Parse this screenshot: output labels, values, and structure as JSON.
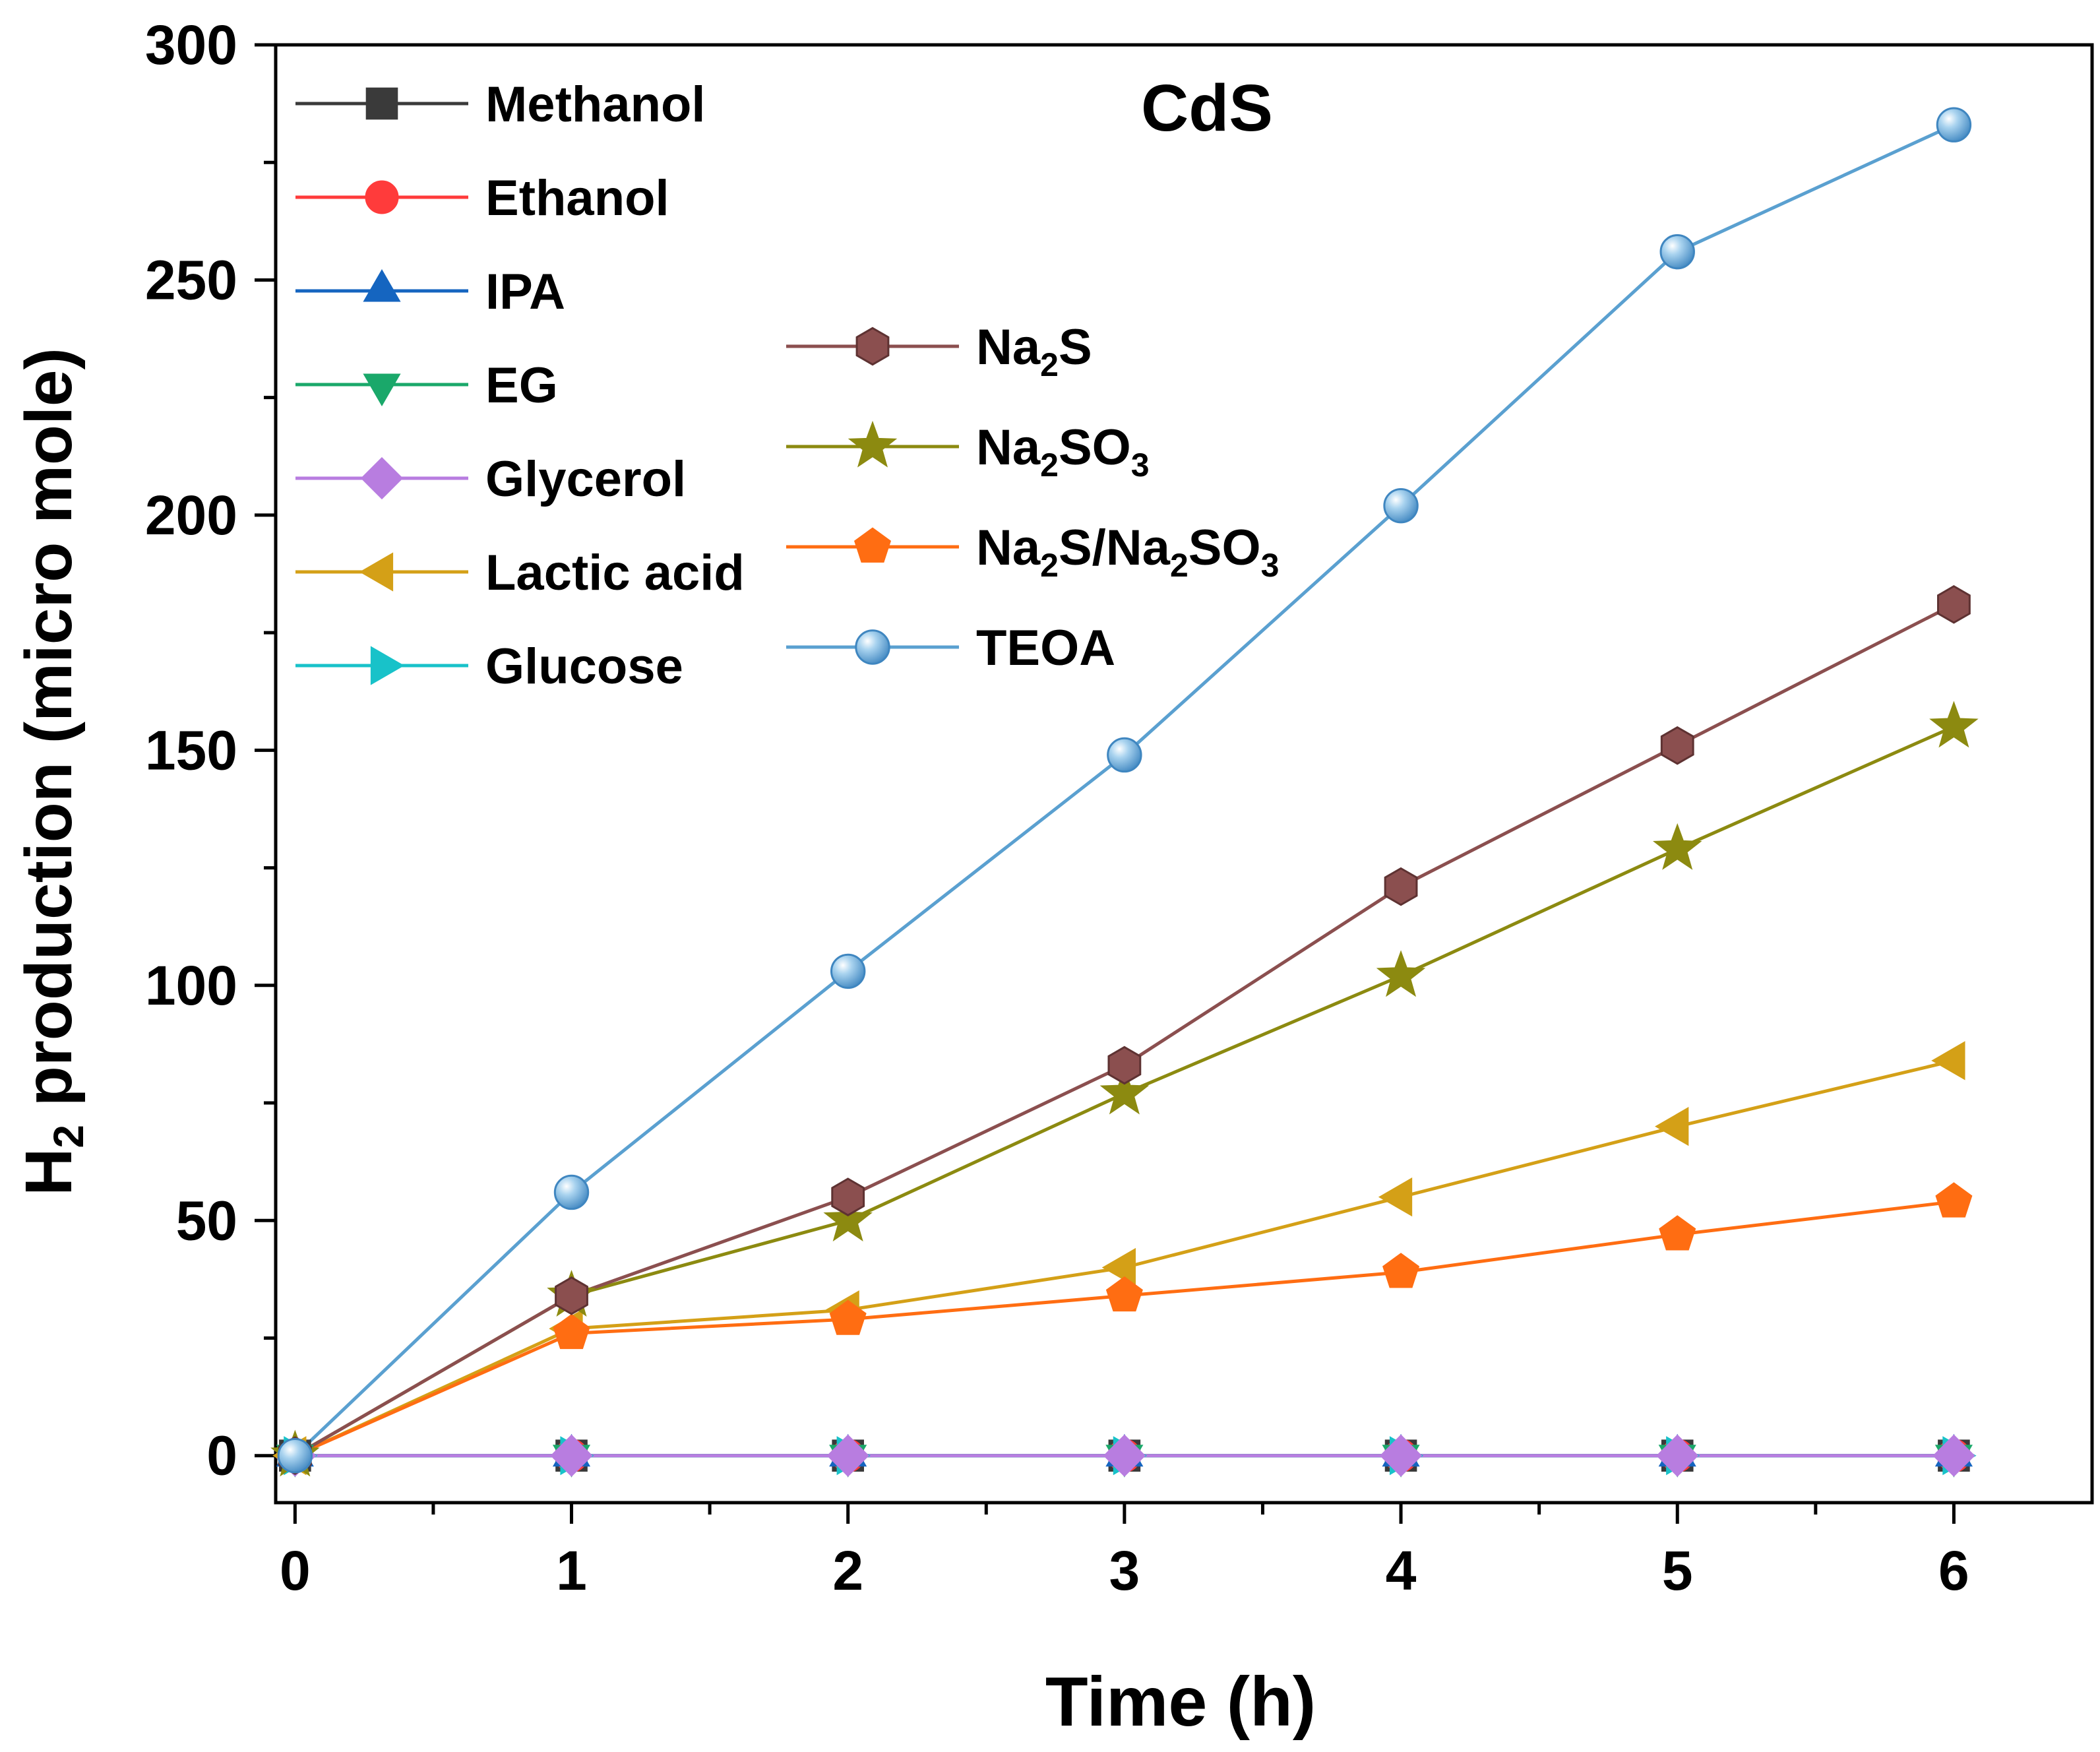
{
  "chart_data": {
    "type": "line",
    "title": "CdS",
    "xlabel": "Time (h)",
    "ylabel_parts": [
      "H",
      "2",
      " production (micro mole)"
    ],
    "xlim": [
      -0.07,
      6.5
    ],
    "ylim": [
      -10,
      300
    ],
    "x": [
      0,
      1,
      2,
      3,
      4,
      5,
      6
    ],
    "x_ticks": [
      "0",
      "1",
      "2",
      "3",
      "4",
      "5",
      "6"
    ],
    "y_ticks": [
      "0",
      "50",
      "100",
      "150",
      "200",
      "250",
      "300"
    ],
    "x_tick_values": [
      0,
      1,
      2,
      3,
      4,
      5,
      6
    ],
    "y_tick_values": [
      0,
      50,
      100,
      150,
      200,
      250,
      300
    ],
    "x_minor_tick_values": [
      0.5,
      1.5,
      2.5,
      3.5,
      4.5,
      5.5
    ],
    "y_minor_tick_values": [
      25,
      75,
      125,
      175,
      225,
      275
    ],
    "series": [
      {
        "key": "methanol",
        "name": [
          {
            "t": "Methanol"
          }
        ],
        "color": "#3a3a3a",
        "marker": "square",
        "values": [
          0,
          0,
          0,
          0,
          0,
          0,
          0
        ]
      },
      {
        "key": "ethanol",
        "name": [
          {
            "t": "Ethanol"
          }
        ],
        "color": "#ff3b3b",
        "marker": "circle",
        "values": [
          0,
          0,
          0,
          0,
          0,
          0,
          0
        ]
      },
      {
        "key": "ipa",
        "name": [
          {
            "t": "IPA"
          }
        ],
        "color": "#1565c0",
        "marker": "triangle-up",
        "values": [
          0,
          0,
          0,
          0,
          0,
          0,
          0
        ]
      },
      {
        "key": "eg",
        "name": [
          {
            "t": "EG"
          }
        ],
        "color": "#1aa86a",
        "marker": "triangle-down",
        "values": [
          0,
          0,
          0,
          0,
          0,
          0,
          0
        ]
      },
      {
        "key": "glucose",
        "name": [
          {
            "t": "Glucose"
          }
        ],
        "color": "#18c2c9",
        "marker": "triangle-right",
        "values": [
          0,
          0,
          0,
          0,
          0,
          0,
          0
        ]
      },
      {
        "key": "glycerol",
        "name": [
          {
            "t": "Glycerol"
          }
        ],
        "color": "#b87de0",
        "marker": "diamond",
        "values": [
          0,
          0,
          0,
          0,
          0,
          0,
          0
        ]
      },
      {
        "key": "lactic-acid",
        "name": [
          {
            "t": "Lactic acid"
          }
        ],
        "color": "#d4a017",
        "marker": "triangle-left",
        "values": [
          0,
          27,
          31,
          40,
          55,
          70,
          84
        ]
      },
      {
        "key": "na2s-na2so3",
        "name": [
          {
            "t": "Na"
          },
          {
            "t": "2",
            "sub": true
          },
          {
            "t": "S/Na"
          },
          {
            "t": "2",
            "sub": true
          },
          {
            "t": "SO"
          },
          {
            "t": "3",
            "sub": true
          }
        ],
        "color": "#ff6d12",
        "marker": "pentagon",
        "values": [
          0,
          26,
          29,
          34,
          39,
          47,
          54
        ]
      },
      {
        "key": "na2so3",
        "name": [
          {
            "t": "Na"
          },
          {
            "t": "2",
            "sub": true
          },
          {
            "t": "SO"
          },
          {
            "t": "3",
            "sub": true
          }
        ],
        "color": "#8c8a10",
        "marker": "star",
        "values": [
          0,
          34,
          50,
          77,
          102,
          129,
          155
        ]
      },
      {
        "key": "na2s",
        "name": [
          {
            "t": "Na"
          },
          {
            "t": "2",
            "sub": true
          },
          {
            "t": "S"
          }
        ],
        "color": "#8b4f4f",
        "marker": "hexagon",
        "values": [
          0,
          34,
          55,
          83,
          121,
          151,
          181
        ]
      },
      {
        "key": "teoa",
        "name": [
          {
            "t": "TEOA"
          }
        ],
        "color": "#5aa0d0",
        "marker": "sphere",
        "values": [
          0,
          56,
          103,
          149,
          202,
          256,
          283
        ]
      }
    ],
    "legend": {
      "placement": "top-left, two columns",
      "column_1": [
        "methanol",
        "ethanol",
        "ipa",
        "eg",
        "glycerol",
        "lactic-acid",
        "glucose"
      ],
      "column_2": [
        "na2s",
        "na2so3",
        "na2s-na2so3",
        "teoa"
      ]
    }
  }
}
